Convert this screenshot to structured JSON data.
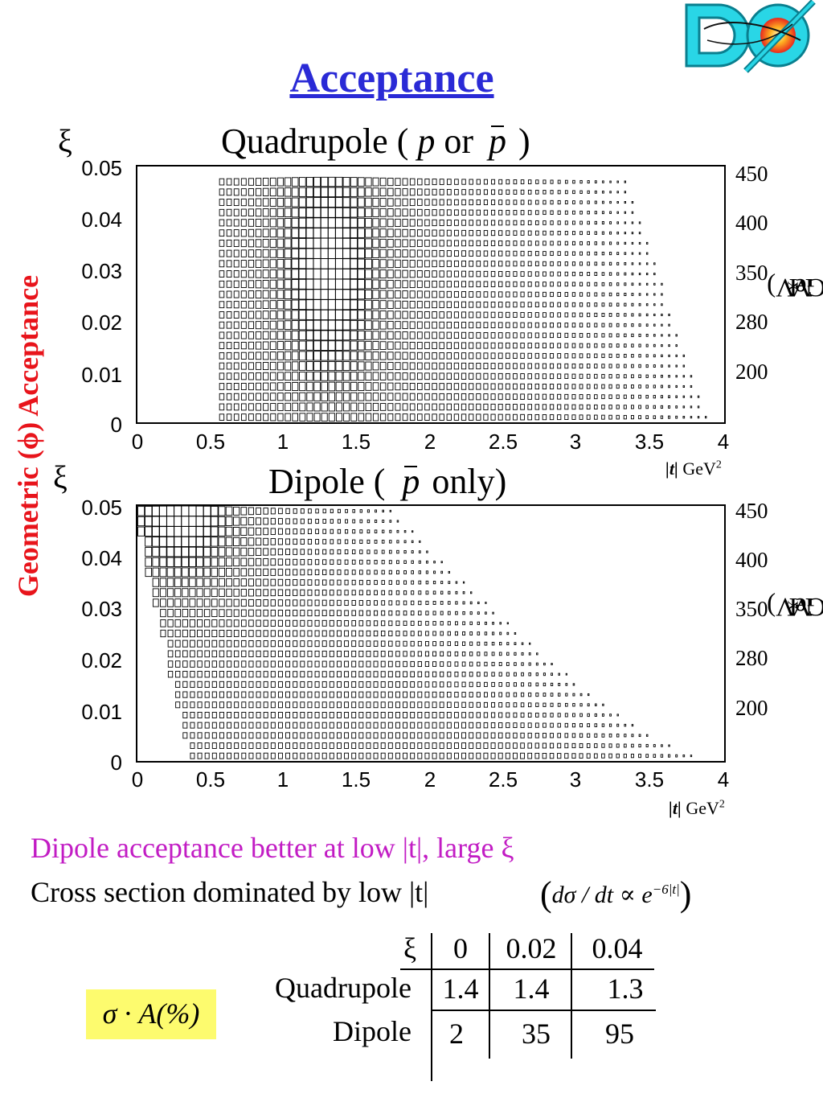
{
  "title": "Acceptance",
  "logo_text": "DØ",
  "left_axis_label": "Geometric (ϕ) Acceptance",
  "colors": {
    "title": "#2a2ad6",
    "left_label": "#e8141b",
    "note": "#c21cc4",
    "badge": "#fdfb6e"
  },
  "panels": [
    {
      "title_prefix": "Quadrupole ( ",
      "title_p1": "p",
      "title_or": " or ",
      "title_p2": "p",
      "title_suffix": " )",
      "ylabel": "ξ",
      "right_label": "M",
      "right_sub": "X",
      "right_unit": "(GeV)",
      "xlabel_t": "|t|",
      "xlabel_unit": " GeV",
      "xlabel_sup": "2",
      "y_ticks": [
        "0.05",
        "0.04",
        "0.03",
        "0.02",
        "0.01",
        "0"
      ],
      "x_ticks": [
        "0",
        "0.5",
        "1",
        "1.5",
        "2",
        "2.5",
        "3",
        "3.5",
        "4"
      ],
      "right_ticks": [
        "450",
        "400",
        "350",
        "280",
        "200"
      ]
    },
    {
      "title_prefix": "Dipole ( ",
      "title_p2": "p",
      "title_suffix": "  only)",
      "ylabel": "ξ",
      "right_label": "M",
      "right_sub": "X",
      "right_unit": "(GeV)",
      "xlabel_t": "|t|",
      "xlabel_unit": " GeV",
      "xlabel_sup": "2",
      "y_ticks": [
        "0.05",
        "0.04",
        "0.03",
        "0.02",
        "0.01",
        "0"
      ],
      "x_ticks": [
        "0",
        "0.5",
        "1",
        "1.5",
        "2",
        "2.5",
        "3",
        "3.5",
        "4"
      ],
      "right_ticks": [
        "450",
        "400",
        "350",
        "280",
        "200"
      ]
    }
  ],
  "chart_data": [
    {
      "type": "heatmap",
      "title": "Quadrupole ( p or p )",
      "xlabel": "|t| GeV2",
      "ylabel": "ξ",
      "secondary_ylabel": "MX(GeV)",
      "xlim": [
        0,
        4
      ],
      "ylim": [
        0,
        0.05
      ],
      "secondary_ticks": [
        450,
        400,
        350,
        280,
        200
      ],
      "grid": {
        "x_step": 0.05,
        "y_step": 0.002,
        "encoding": "box area proportional to acceptance"
      },
      "acceptance_region": {
        "t_min": 0.55,
        "t_max_at_xi_0": 3.9,
        "t_max_at_xi_0_05": 3.3,
        "peak_t": 1.3,
        "peak_xi": 0.03
      }
    },
    {
      "type": "heatmap",
      "title": "Dipole ( p only)",
      "xlabel": "|t| GeV2",
      "ylabel": "ξ",
      "secondary_ylabel": "MX(GeV)",
      "xlim": [
        0,
        4
      ],
      "ylim": [
        0,
        0.05
      ],
      "secondary_ticks": [
        450,
        400,
        350,
        280,
        200
      ],
      "grid": {
        "x_step": 0.05,
        "y_step": 0.002,
        "encoding": "box area proportional to acceptance"
      },
      "acceptance_region": {
        "t_max_at_xi_0_05": 1.8,
        "t_max_at_xi_0": 4.0,
        "peak_t": 0.3,
        "peak_xi": 0.05
      }
    }
  ],
  "notes": {
    "line1": "Dipole acceptance better at low |t|, large ξ",
    "line2": "Cross section dominated by low |t|",
    "formula_lhs": "dσ / dt ∝ e",
    "formula_exp": "−6|t|"
  },
  "table": {
    "header_symbol": "ξ",
    "columns": [
      "0",
      "0.02",
      "0.04"
    ],
    "rows": [
      {
        "label": "Quadrupole",
        "values": [
          "1.4",
          "1.4",
          "1.3"
        ]
      },
      {
        "label": "Dipole",
        "values": [
          "2",
          "35",
          "95"
        ]
      }
    ],
    "badge": "σ · A(%)"
  }
}
